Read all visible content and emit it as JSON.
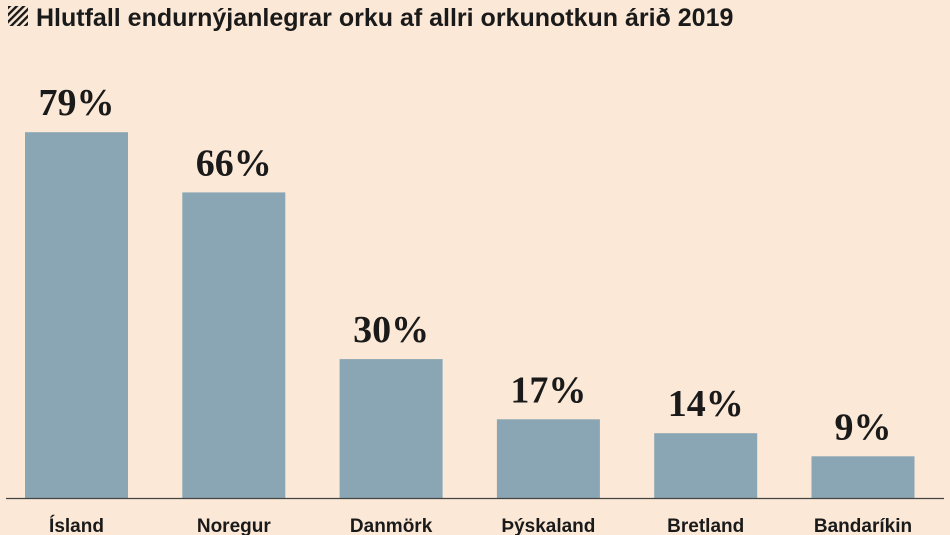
{
  "chart_data": {
    "type": "bar",
    "title": "Hlutfall endurnýjanlegrar orku af allri orkunotkun árið 2019",
    "categories": [
      "Ísland",
      "Noregur",
      "Danmörk",
      "Þýskaland",
      "Bretland",
      "Bandaríkin"
    ],
    "values": [
      79,
      66,
      30,
      17,
      14,
      9
    ],
    "value_labels": [
      "79%",
      "66%",
      "30%",
      "17%",
      "14%",
      "9%"
    ],
    "xlabel": "",
    "ylabel": "",
    "ylim": [
      0,
      100
    ],
    "grid": false,
    "legend": "none",
    "bar_color": "#8aa6b4",
    "axis_color": "#444444",
    "background_color": "#fbe8d6",
    "title_icon": "hatched-square-icon"
  }
}
